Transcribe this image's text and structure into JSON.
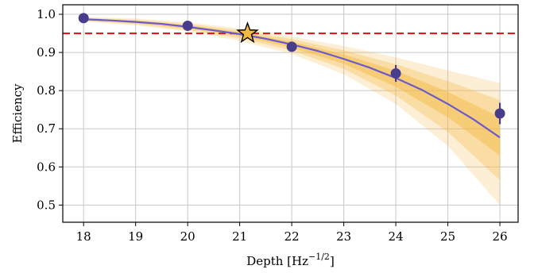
{
  "chart_data": {
    "type": "scatter",
    "xlabel": "Depth",
    "xlabel_unit_base": "Hz",
    "xlabel_unit_exp": "−1/2",
    "ylabel": "Efficiency",
    "xlim": [
      17.6,
      26.35
    ],
    "ylim": [
      0.455,
      1.025
    ],
    "x_ticks": [
      18,
      19,
      20,
      21,
      22,
      23,
      24,
      25,
      26
    ],
    "y_ticks": [
      0.5,
      0.6,
      0.7,
      0.8,
      0.9,
      1.0
    ],
    "y_tick_labels": [
      "0.5",
      "0.6",
      "0.7",
      "0.8",
      "0.9",
      "1.0"
    ],
    "grid": true,
    "threshold": {
      "y": 0.95,
      "color": "#e41a1c",
      "style": "dashed"
    },
    "points": {
      "color": "#483d8b",
      "x": [
        18,
        20,
        22,
        24,
        26
      ],
      "y": [
        0.99,
        0.97,
        0.915,
        0.845,
        0.74
      ],
      "yerr": [
        0.004,
        0.006,
        0.012,
        0.022,
        0.028
      ]
    },
    "fit": {
      "color": "#6a5acd",
      "x": [
        18,
        18.5,
        19,
        19.5,
        20,
        20.5,
        21,
        21.5,
        22,
        22.5,
        23,
        23.5,
        24,
        24.5,
        25,
        25.5,
        26
      ],
      "y": [
        0.987,
        0.984,
        0.98,
        0.975,
        0.967,
        0.958,
        0.948,
        0.936,
        0.921,
        0.904,
        0.883,
        0.86,
        0.833,
        0.802,
        0.765,
        0.724,
        0.677
      ]
    },
    "bands": {
      "color": "#f5b841",
      "x": [
        18,
        19,
        20,
        21,
        22,
        23,
        24,
        25,
        26
      ],
      "inner": {
        "lower": [
          0.985,
          0.977,
          0.963,
          0.943,
          0.913,
          0.87,
          0.81,
          0.73,
          0.63
        ],
        "upper": [
          0.989,
          0.983,
          0.971,
          0.953,
          0.928,
          0.895,
          0.852,
          0.797,
          0.73
        ]
      },
      "middle": {
        "lower": [
          0.983,
          0.974,
          0.959,
          0.937,
          0.905,
          0.857,
          0.787,
          0.692,
          0.565
        ],
        "upper": [
          0.991,
          0.986,
          0.975,
          0.958,
          0.935,
          0.906,
          0.869,
          0.825,
          0.775
        ]
      },
      "outer": {
        "lower": [
          0.981,
          0.971,
          0.955,
          0.93,
          0.896,
          0.843,
          0.765,
          0.655,
          0.5
        ],
        "upper": [
          0.993,
          0.989,
          0.979,
          0.963,
          0.942,
          0.917,
          0.887,
          0.853,
          0.82
        ]
      }
    },
    "star_marker": {
      "x": 21.15,
      "y": 0.95,
      "color": "#f5b841"
    }
  }
}
